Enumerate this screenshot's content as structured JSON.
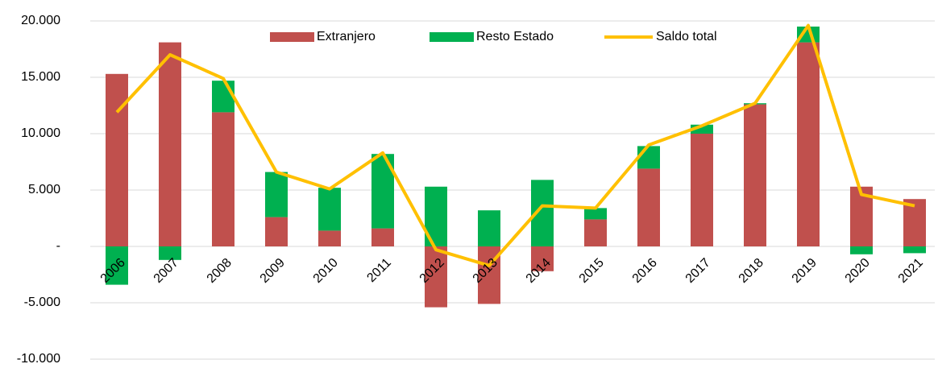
{
  "chart_data": {
    "type": "bar_line",
    "categories": [
      "2006",
      "2007",
      "2008",
      "2009",
      "2010",
      "2011",
      "2012",
      "2013",
      "2014",
      "2015",
      "2016",
      "2017",
      "2018",
      "2019",
      "2020",
      "2021"
    ],
    "series": [
      {
        "name": "Extranjero",
        "type": "bar",
        "color": "#c0504d",
        "values": [
          15300,
          18100,
          11900,
          2600,
          1400,
          1600,
          -5400,
          -5100,
          -2200,
          2400,
          6900,
          10000,
          12600,
          18100,
          5300,
          4200
        ]
      },
      {
        "name": "Resto Estado",
        "type": "bar",
        "color": "#00b050",
        "values": [
          -3400,
          -1200,
          2800,
          4000,
          3800,
          6600,
          5300,
          3200,
          5900,
          1000,
          2000,
          800,
          100,
          1400,
          -700,
          -600
        ]
      },
      {
        "name": "Saldo total",
        "type": "line",
        "color": "#ffc000",
        "values": [
          11900,
          17000,
          14900,
          6600,
          5100,
          8300,
          -300,
          -1700,
          3600,
          3400,
          9000,
          10700,
          12700,
          19600,
          4600,
          3600
        ]
      }
    ],
    "ylim": [
      -10000,
      20000
    ],
    "yticks": [
      {
        "value": -10000,
        "label": "-10.000"
      },
      {
        "value": -5000,
        "label": "-5.000"
      },
      {
        "value": 0,
        "label": "-"
      },
      {
        "value": 5000,
        "label": "5.000"
      },
      {
        "value": 10000,
        "label": "10.000"
      },
      {
        "value": 15000,
        "label": "15.000"
      },
      {
        "value": 20000,
        "label": "20.000"
      }
    ],
    "grid": true,
    "legend": "top"
  }
}
